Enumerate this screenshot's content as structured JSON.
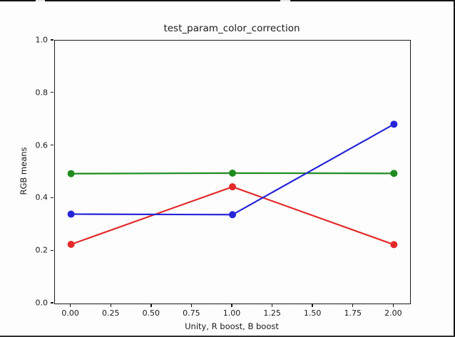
{
  "window": {
    "background": "#fdfdfd",
    "edge_color": "#141414"
  },
  "chart_data": {
    "type": "line",
    "title": "test_param_color_correction",
    "xlabel": "Unity, R boost, B boost",
    "ylabel": "RGB means",
    "x": [
      0,
      1,
      2
    ],
    "series": [
      {
        "name": "red",
        "color": "#e32b2b",
        "values": [
          0.225,
          0.444,
          0.224
        ]
      },
      {
        "name": "green",
        "color": "#1f8b1f",
        "values": [
          0.494,
          0.496,
          0.495
        ]
      },
      {
        "name": "blue",
        "color": "#2626d8",
        "values": [
          0.34,
          0.338,
          0.682
        ]
      }
    ],
    "xlim": [
      -0.1,
      2.1
    ],
    "ylim": [
      0.0,
      1.0
    ],
    "xticks": {
      "values": [
        0,
        0.25,
        0.5,
        0.75,
        1,
        1.25,
        1.5,
        1.75,
        2
      ],
      "labels": [
        "0.00",
        "0.25",
        "0.50",
        "0.75",
        "1.00",
        "1.25",
        "1.50",
        "1.75",
        "2.00"
      ]
    },
    "yticks": {
      "values": [
        0,
        0.2,
        0.4,
        0.6,
        0.8,
        1
      ],
      "labels": [
        "0.0",
        "0.2",
        "0.4",
        "0.6",
        "0.8",
        "1.0"
      ]
    },
    "grid": false,
    "legend": "none",
    "marker": "circle",
    "line_width": 2.2,
    "marker_radius": 5,
    "axis_color": "#1a1a1a"
  }
}
